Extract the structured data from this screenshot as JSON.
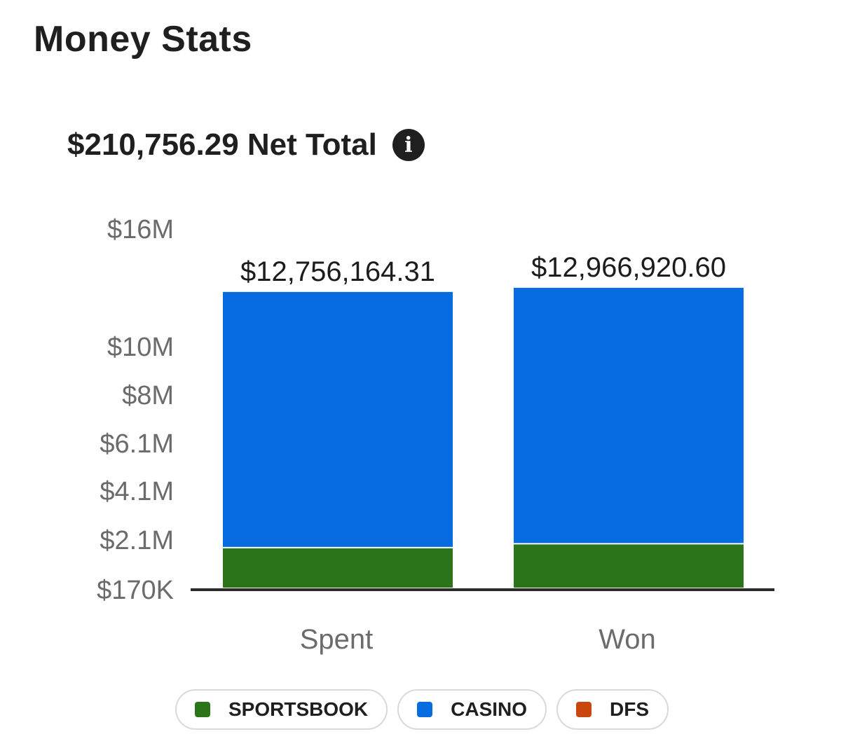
{
  "header": {
    "title": "Money Stats"
  },
  "summary": {
    "net_total_label": "$210,756.29 Net Total",
    "info_icon": "info-icon"
  },
  "chart_data": {
    "type": "bar",
    "stacked": true,
    "categories": [
      "Spent",
      "Won"
    ],
    "series": [
      {
        "name": "SPORTSBOOK",
        "color": "#2b7419",
        "values": [
          1750000,
          1900000
        ]
      },
      {
        "name": "CASINO",
        "color": "#066ce0",
        "values": [
          11006164.31,
          11066920.6
        ]
      },
      {
        "name": "DFS",
        "color": "#c9470f",
        "values": [
          0,
          0
        ]
      }
    ],
    "totals": [
      12756164.31,
      12966920.6
    ],
    "total_labels": [
      "$12,756,164.31",
      "$12,966,920.60"
    ],
    "y_ticks": [
      {
        "value": 170000,
        "label": "$170K"
      },
      {
        "value": 2100000,
        "label": "$2.1M"
      },
      {
        "value": 4100000,
        "label": "$4.1M"
      },
      {
        "value": 6100000,
        "label": "$6.1M"
      },
      {
        "value": 8000000,
        "label": "$8M"
      },
      {
        "value": 10000000,
        "label": "$10M"
      },
      {
        "value": 16000000,
        "label": "$16M"
      }
    ],
    "ylim": [
      170000,
      16000000
    ],
    "grid": false,
    "legend_position": "bottom"
  },
  "legend": {
    "items": [
      {
        "label": "SPORTSBOOK",
        "color": "#2b7419"
      },
      {
        "label": "CASINO",
        "color": "#066ce0"
      },
      {
        "label": "DFS",
        "color": "#c9470f"
      }
    ]
  }
}
